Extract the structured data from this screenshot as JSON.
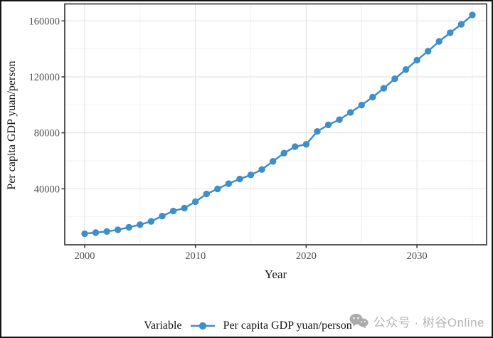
{
  "page": {
    "background": "#ffffff",
    "border_color": "#141414"
  },
  "watermark": {
    "icon": "wechat-icon",
    "icon_color": "#ababab",
    "text": "公众号 · 树谷Online",
    "text_color": "#b5b5b5"
  },
  "chart_data": {
    "type": "line",
    "title": "",
    "xlabel": "Year",
    "ylabel": "Per capita GDP yuan/person",
    "grid": true,
    "panel_border": true,
    "series_color": "#3E8EC8",
    "grid_major_color": "#e4e4e4",
    "grid_minor_color": "#f2f2f2",
    "x_ticks": [
      2000,
      2010,
      2020,
      2030
    ],
    "x_minor_ticks": [
      2005,
      2015,
      2025,
      2035
    ],
    "y_ticks": [
      40000,
      80000,
      120000,
      160000
    ],
    "y_minor_ticks": [
      20000,
      60000,
      100000,
      140000
    ],
    "xlim": [
      1998.2,
      2036.3
    ],
    "ylim": [
      0,
      172100
    ],
    "legend": {
      "position": "bottom",
      "title": "Variable",
      "entries": [
        {
          "label": "Per capita GDP yuan/person",
          "color": "#3E8EC8",
          "marker": "circle-on-line"
        }
      ]
    },
    "series": [
      {
        "name": "Per capita GDP yuan/person",
        "color": "#3E8EC8",
        "x": [
          2000,
          2001,
          2002,
          2003,
          2004,
          2005,
          2006,
          2007,
          2008,
          2009,
          2010,
          2011,
          2012,
          2013,
          2014,
          2015,
          2016,
          2017,
          2018,
          2019,
          2020,
          2021,
          2022,
          2023,
          2024,
          2025,
          2026,
          2027,
          2028,
          2029,
          2030,
          2031,
          2032,
          2033,
          2034,
          2035
        ],
        "y": [
          7900,
          8700,
          9500,
          10700,
          12500,
          14400,
          16700,
          20500,
          24100,
          26200,
          30800,
          36300,
          39900,
          43700,
          47000,
          49900,
          53800,
          59600,
          65500,
          70100,
          71800,
          81000,
          85700,
          89400,
          94600,
          99800,
          105500,
          111800,
          118600,
          125200,
          131900,
          138300,
          145300,
          151500,
          157500,
          164200
        ]
      }
    ]
  }
}
